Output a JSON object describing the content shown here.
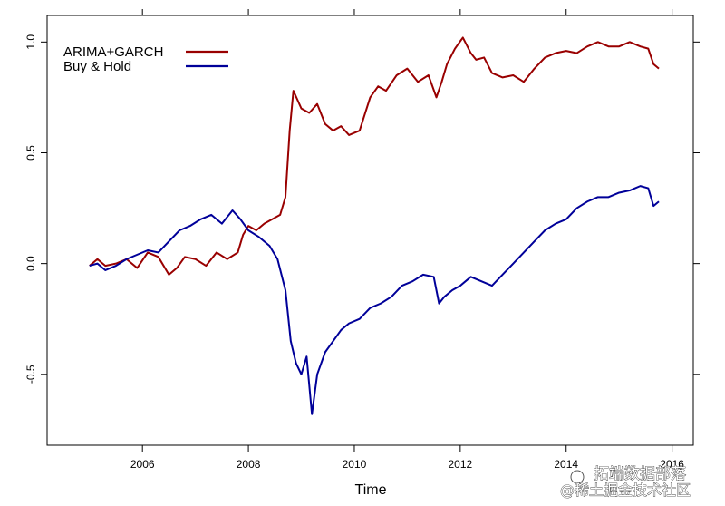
{
  "chart_data": {
    "type": "line",
    "xlabel": "Time",
    "ylabel": "",
    "title": "",
    "xlim": [
      2004.2,
      2016.4
    ],
    "ylim": [
      -0.82,
      1.12
    ],
    "x_ticks": [
      {
        "value": 2006,
        "label": "2006"
      },
      {
        "value": 2008,
        "label": "2008"
      },
      {
        "value": 2010,
        "label": "2010"
      },
      {
        "value": 2012,
        "label": "2012"
      },
      {
        "value": 2014,
        "label": "2014"
      },
      {
        "value": 2016,
        "label": "2016"
      }
    ],
    "y_ticks": [
      {
        "value": -0.5,
        "label": "-0.5"
      },
      {
        "value": 0.0,
        "label": "0.0"
      },
      {
        "value": 0.5,
        "label": "0.5"
      },
      {
        "value": 1.0,
        "label": "1.0"
      }
    ],
    "grid": false,
    "legend_position": "top-left",
    "series": [
      {
        "name": "ARIMA+GARCH",
        "color": "#990000",
        "x": [
          2005.0,
          2005.15,
          2005.3,
          2005.5,
          2005.7,
          2005.9,
          2006.1,
          2006.3,
          2006.5,
          2006.65,
          2006.8,
          2007.0,
          2007.2,
          2007.4,
          2007.6,
          2007.8,
          2007.9,
          2008.0,
          2008.15,
          2008.3,
          2008.45,
          2008.6,
          2008.7,
          2008.78,
          2008.85,
          2009.0,
          2009.15,
          2009.3,
          2009.45,
          2009.6,
          2009.75,
          2009.9,
          2010.1,
          2010.3,
          2010.45,
          2010.6,
          2010.8,
          2011.0,
          2011.2,
          2011.4,
          2011.55,
          2011.65,
          2011.75,
          2011.9,
          2012.05,
          2012.2,
          2012.3,
          2012.45,
          2012.6,
          2012.8,
          2013.0,
          2013.2,
          2013.4,
          2013.6,
          2013.8,
          2014.0,
          2014.2,
          2014.4,
          2014.6,
          2014.8,
          2015.0,
          2015.2,
          2015.4,
          2015.55,
          2015.65,
          2015.75
        ],
        "y": [
          -0.01,
          0.02,
          -0.01,
          0.0,
          0.02,
          -0.02,
          0.05,
          0.03,
          -0.05,
          -0.02,
          0.03,
          0.02,
          -0.01,
          0.05,
          0.02,
          0.05,
          0.13,
          0.17,
          0.15,
          0.18,
          0.2,
          0.22,
          0.3,
          0.6,
          0.78,
          0.7,
          0.68,
          0.72,
          0.63,
          0.6,
          0.62,
          0.58,
          0.6,
          0.75,
          0.8,
          0.78,
          0.85,
          0.88,
          0.82,
          0.85,
          0.75,
          0.82,
          0.9,
          0.97,
          1.02,
          0.95,
          0.92,
          0.93,
          0.86,
          0.84,
          0.85,
          0.82,
          0.88,
          0.93,
          0.95,
          0.96,
          0.95,
          0.98,
          1.0,
          0.98,
          0.98,
          1.0,
          0.98,
          0.97,
          0.9,
          0.88
        ]
      },
      {
        "name": "Buy & Hold",
        "color": "#000099",
        "x": [
          2005.0,
          2005.15,
          2005.3,
          2005.5,
          2005.7,
          2005.9,
          2006.1,
          2006.3,
          2006.5,
          2006.7,
          2006.9,
          2007.1,
          2007.3,
          2007.5,
          2007.7,
          2007.85,
          2008.0,
          2008.2,
          2008.4,
          2008.55,
          2008.7,
          2008.8,
          2008.9,
          2009.0,
          2009.1,
          2009.2,
          2009.3,
          2009.45,
          2009.6,
          2009.75,
          2009.9,
          2010.1,
          2010.3,
          2010.5,
          2010.7,
          2010.9,
          2011.1,
          2011.3,
          2011.5,
          2011.6,
          2011.7,
          2011.85,
          2012.0,
          2012.2,
          2012.4,
          2012.6,
          2012.8,
          2013.0,
          2013.2,
          2013.4,
          2013.6,
          2013.8,
          2014.0,
          2014.2,
          2014.4,
          2014.6,
          2014.8,
          2015.0,
          2015.2,
          2015.4,
          2015.55,
          2015.65,
          2015.75
        ],
        "y": [
          -0.01,
          0.0,
          -0.03,
          -0.01,
          0.02,
          0.04,
          0.06,
          0.05,
          0.1,
          0.15,
          0.17,
          0.2,
          0.22,
          0.18,
          0.24,
          0.2,
          0.15,
          0.12,
          0.08,
          0.02,
          -0.12,
          -0.35,
          -0.45,
          -0.5,
          -0.42,
          -0.68,
          -0.5,
          -0.4,
          -0.35,
          -0.3,
          -0.27,
          -0.25,
          -0.2,
          -0.18,
          -0.15,
          -0.1,
          -0.08,
          -0.05,
          -0.06,
          -0.18,
          -0.15,
          -0.12,
          -0.1,
          -0.06,
          -0.08,
          -0.1,
          -0.05,
          0.0,
          0.05,
          0.1,
          0.15,
          0.18,
          0.2,
          0.25,
          0.28,
          0.3,
          0.3,
          0.32,
          0.33,
          0.35,
          0.34,
          0.26,
          0.28
        ]
      }
    ]
  },
  "watermark": {
    "lines": [
      "拓端数据部落",
      "@稀土掘金技术社区"
    ]
  }
}
